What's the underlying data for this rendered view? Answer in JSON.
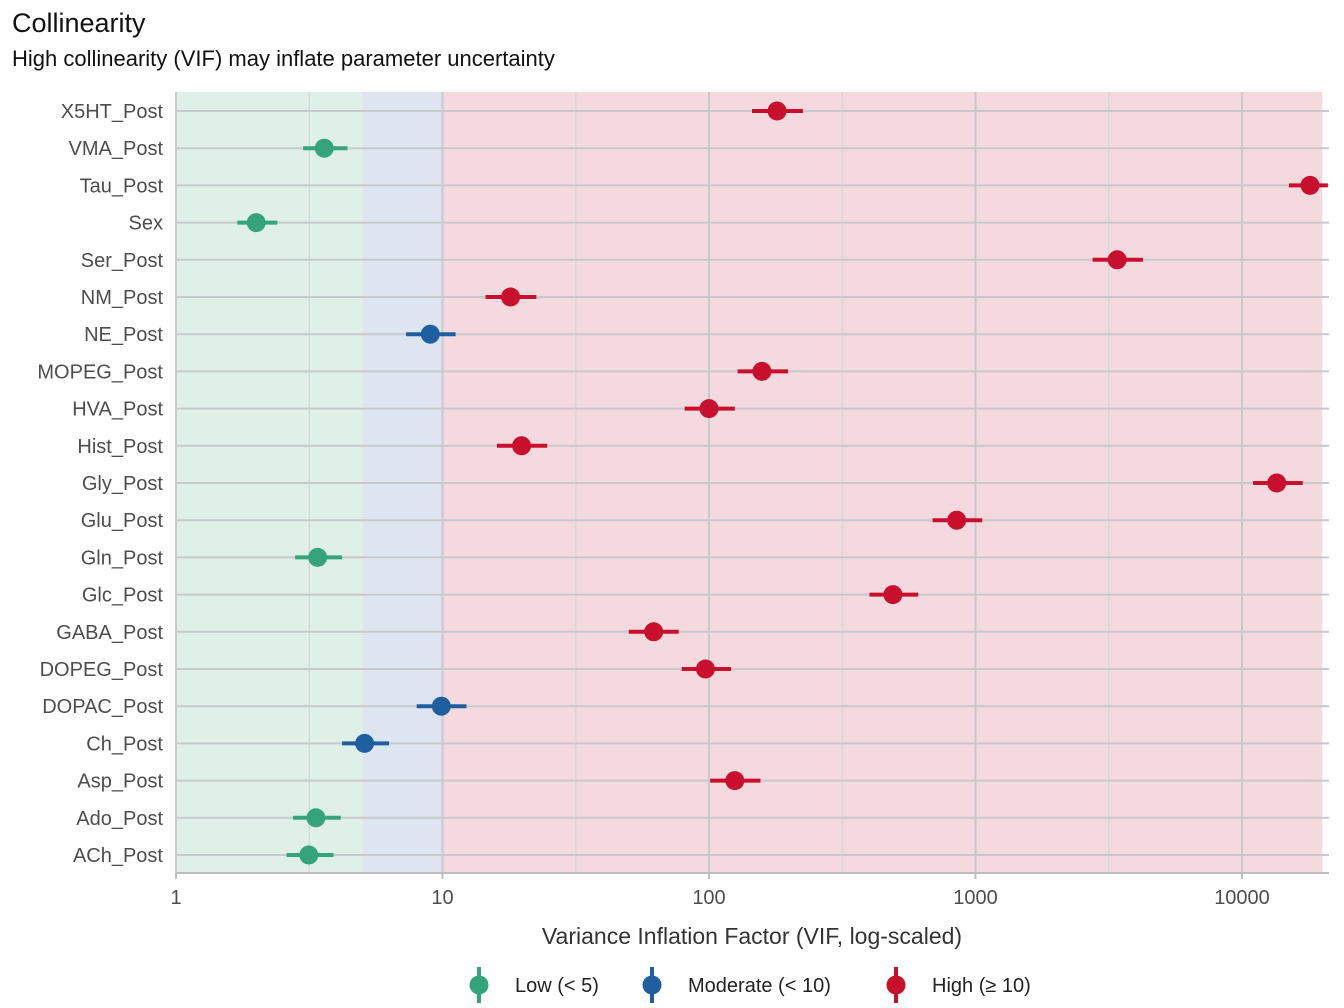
{
  "title": "Collinearity",
  "subtitle": "High collinearity (VIF) may inflate parameter uncertainty",
  "chart_data": {
    "type": "scatter",
    "xlabel": "Variance Inflation Factor (VIF, log-scaled)",
    "x_scale": "log10",
    "xlim": [
      1,
      20000
    ],
    "x_ticks": [
      "1",
      "10",
      "100",
      "1000",
      "10000"
    ],
    "zones": [
      {
        "name": "Low",
        "from": 1,
        "to": 5,
        "color": "#dff0e8"
      },
      {
        "name": "Moderate",
        "from": 5,
        "to": 10,
        "color": "#dde5f0"
      },
      {
        "name": "High",
        "from": 10,
        "to": 20000,
        "color": "#f4d9de"
      }
    ],
    "legend": [
      {
        "label": "Low (< 5)",
        "color": "#35a47a"
      },
      {
        "label": "Moderate (< 10)",
        "color": "#1f5fa0"
      },
      {
        "label": "High (≥ 10)",
        "color": "#c8102e"
      }
    ],
    "legend_position": "bottom",
    "points": [
      {
        "label": "X5HT_Post",
        "vif": 180,
        "lo": 145,
        "hi": 225,
        "group": "High"
      },
      {
        "label": "VMA_Post",
        "vif": 3.6,
        "lo": 3.0,
        "hi": 4.4,
        "group": "Low"
      },
      {
        "label": "Tau_Post",
        "vif": 18000,
        "lo": 15000,
        "hi": 21000,
        "group": "High"
      },
      {
        "label": "Sex",
        "vif": 2.0,
        "lo": 1.7,
        "hi": 2.4,
        "group": "Low"
      },
      {
        "label": "Ser_Post",
        "vif": 3400,
        "lo": 2750,
        "hi": 4250,
        "group": "High"
      },
      {
        "label": "NM_Post",
        "vif": 18,
        "lo": 14.5,
        "hi": 22.5,
        "group": "High"
      },
      {
        "label": "NE_Post",
        "vif": 9.0,
        "lo": 7.3,
        "hi": 11.2,
        "group": "Moderate"
      },
      {
        "label": "MOPEG_Post",
        "vif": 158,
        "lo": 128,
        "hi": 198,
        "group": "High"
      },
      {
        "label": "HVA_Post",
        "vif": 100,
        "lo": 81,
        "hi": 125,
        "group": "High"
      },
      {
        "label": "Hist_Post",
        "vif": 19.8,
        "lo": 16,
        "hi": 24.7,
        "group": "High"
      },
      {
        "label": "Gly_Post",
        "vif": 13500,
        "lo": 11000,
        "hi": 16900,
        "group": "High"
      },
      {
        "label": "Glu_Post",
        "vif": 850,
        "lo": 690,
        "hi": 1060,
        "group": "High"
      },
      {
        "label": "Gln_Post",
        "vif": 3.4,
        "lo": 2.8,
        "hi": 4.2,
        "group": "Low"
      },
      {
        "label": "Glc_Post",
        "vif": 490,
        "lo": 400,
        "hi": 610,
        "group": "High"
      },
      {
        "label": "GABA_Post",
        "vif": 62,
        "lo": 50,
        "hi": 77,
        "group": "High"
      },
      {
        "label": "DOPEG_Post",
        "vif": 97,
        "lo": 79,
        "hi": 121,
        "group": "High"
      },
      {
        "label": "DOPAC_Post",
        "vif": 9.9,
        "lo": 8.0,
        "hi": 12.3,
        "group": "Moderate"
      },
      {
        "label": "Ch_Post",
        "vif": 5.1,
        "lo": 4.2,
        "hi": 6.3,
        "group": "Moderate"
      },
      {
        "label": "Asp_Post",
        "vif": 125,
        "lo": 101,
        "hi": 156,
        "group": "High"
      },
      {
        "label": "Ado_Post",
        "vif": 3.35,
        "lo": 2.75,
        "hi": 4.15,
        "group": "Low"
      },
      {
        "label": "ACh_Post",
        "vif": 3.15,
        "lo": 2.6,
        "hi": 3.9,
        "group": "Low"
      }
    ]
  }
}
